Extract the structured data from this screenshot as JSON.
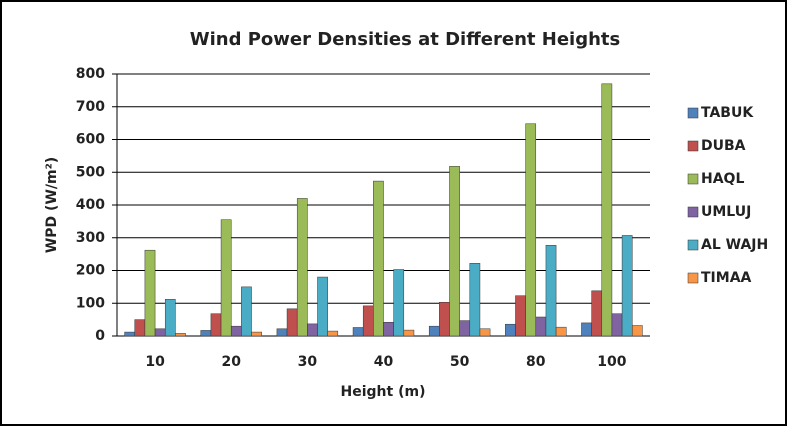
{
  "chart_data": {
    "type": "bar",
    "title": "Wind Power Densities at Different Heights",
    "x_label": "Height (m)",
    "y_label": "WPD (W/m²)",
    "categories": [
      "10",
      "20",
      "30",
      "40",
      "50",
      "80",
      "100"
    ],
    "series": [
      {
        "name": "TABUK",
        "color": "#4f81bd",
        "values": [
          12,
          17,
          22,
          26,
          30,
          36,
          40
        ]
      },
      {
        "name": "DUBA",
        "color": "#c0504d",
        "values": [
          50,
          68,
          83,
          92,
          103,
          123,
          138
        ]
      },
      {
        "name": "HAQL",
        "color": "#9bbb59",
        "values": [
          262,
          355,
          420,
          473,
          518,
          648,
          770
        ]
      },
      {
        "name": "UMLUJ",
        "color": "#8064a2",
        "values": [
          22,
          30,
          37,
          42,
          47,
          58,
          68
        ]
      },
      {
        "name": "AL WAJH",
        "color": "#4bacc6",
        "values": [
          112,
          150,
          180,
          203,
          222,
          277,
          307
        ]
      },
      {
        "name": "TIMAA",
        "color": "#f79646",
        "values": [
          8,
          12,
          15,
          18,
          22,
          27,
          32
        ]
      }
    ],
    "ylim": [
      0,
      800
    ],
    "yticks": [
      0,
      100,
      200,
      300,
      400,
      500,
      600,
      700,
      800
    ],
    "grid": true,
    "legend": "right"
  }
}
